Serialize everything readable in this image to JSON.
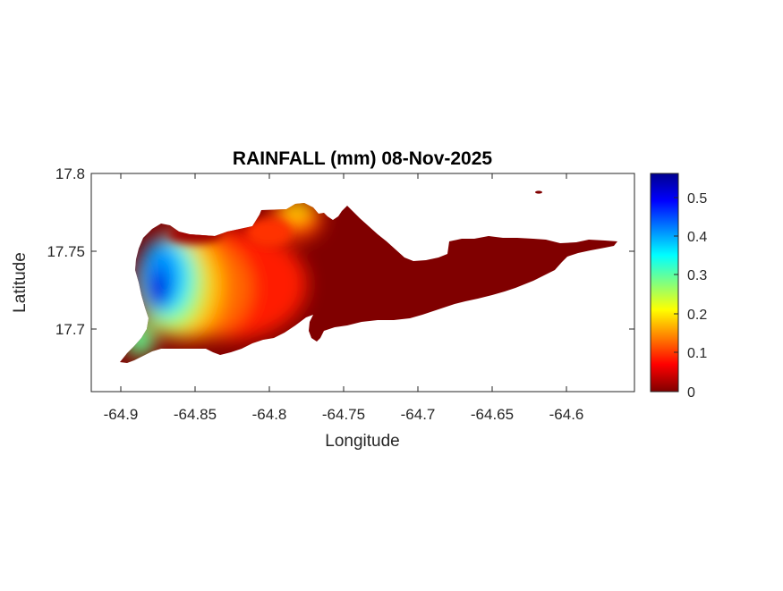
{
  "title": "RAINFALL (mm) 08-Nov-2025",
  "xlabel": "Longitude",
  "ylabel": "Latitude",
  "xticks": [
    "-64.9",
    "-64.85",
    "-64.8",
    "-64.75",
    "-64.7",
    "-64.65",
    "-64.6"
  ],
  "yticks": [
    "17.8",
    "17.75",
    "17.7"
  ],
  "colorbar": {
    "ticks": [
      "0.5",
      "0.4",
      "0.3",
      "0.2",
      "0.1",
      "0"
    ],
    "colormap": "jet",
    "range": [
      0,
      0.56
    ]
  },
  "chart_data": {
    "type": "heatmap",
    "title": "RAINFALL (mm) 08-Nov-2025",
    "xlabel": "Longitude",
    "ylabel": "Latitude",
    "xlim": [
      -64.92,
      -64.555
    ],
    "ylim": [
      17.658,
      17.8
    ],
    "units": "mm",
    "color_range": [
      0,
      0.56
    ],
    "rainfall_hotspots": [
      {
        "lon": -64.878,
        "lat": 17.727,
        "value": 0.55
      },
      {
        "lon": -64.868,
        "lat": 17.742,
        "value": 0.4
      },
      {
        "lon": -64.86,
        "lat": 17.72,
        "value": 0.34
      },
      {
        "lon": -64.885,
        "lat": 17.695,
        "value": 0.3
      },
      {
        "lon": -64.895,
        "lat": 17.682,
        "value": 0.22
      },
      {
        "lon": -64.78,
        "lat": 17.78,
        "value": 0.22
      },
      {
        "lon": -64.83,
        "lat": 17.73,
        "value": 0.08
      },
      {
        "lon": -64.76,
        "lat": 17.75,
        "value": 0.0
      },
      {
        "lon": -64.65,
        "lat": 17.74,
        "value": 0.0
      }
    ]
  }
}
